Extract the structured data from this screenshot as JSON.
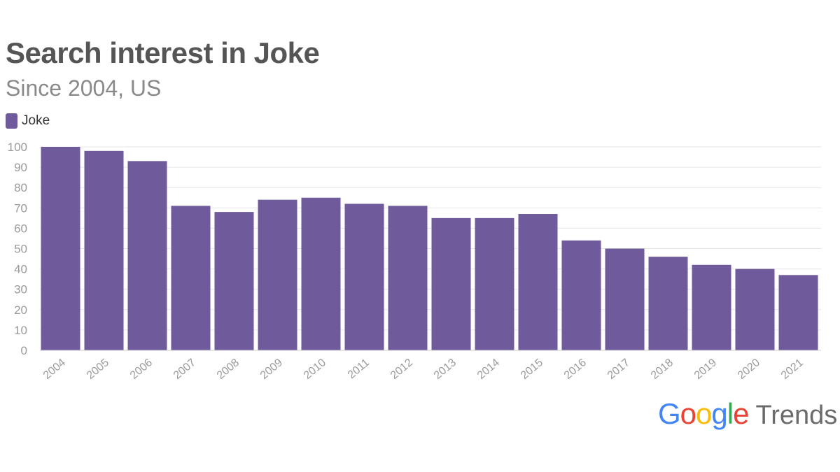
{
  "chart_data": {
    "type": "bar",
    "title": "Search interest in Joke",
    "subtitle": "Since 2004, US",
    "legend": {
      "label": "Joke",
      "placement": "top-left"
    },
    "categories": [
      "2004",
      "2005",
      "2006",
      "2007",
      "2008",
      "2009",
      "2010",
      "2011",
      "2012",
      "2013",
      "2014",
      "2015",
      "2016",
      "2017",
      "2018",
      "2019",
      "2020",
      "2021"
    ],
    "series": [
      {
        "name": "Joke",
        "values": [
          100,
          98,
          93,
          71,
          68,
          74,
          75,
          72,
          71,
          65,
          65,
          67,
          54,
          50,
          46,
          42,
          40,
          37
        ]
      }
    ],
    "ylim": [
      0,
      100
    ],
    "yticks": [
      0,
      10,
      20,
      30,
      40,
      50,
      60,
      70,
      80,
      90,
      100
    ],
    "grid": true,
    "colors": {
      "bar": "#6f5a9b",
      "grid": "#e6e6e6",
      "tick_text": "#9a9a9a"
    }
  },
  "branding": {
    "google": [
      "G",
      "o",
      "o",
      "g",
      "l",
      "e"
    ],
    "google_colors": [
      "#4285F4",
      "#EA4335",
      "#FBBC05",
      "#4285F4",
      "#34A853",
      "#EA4335"
    ],
    "trends": "Trends"
  }
}
